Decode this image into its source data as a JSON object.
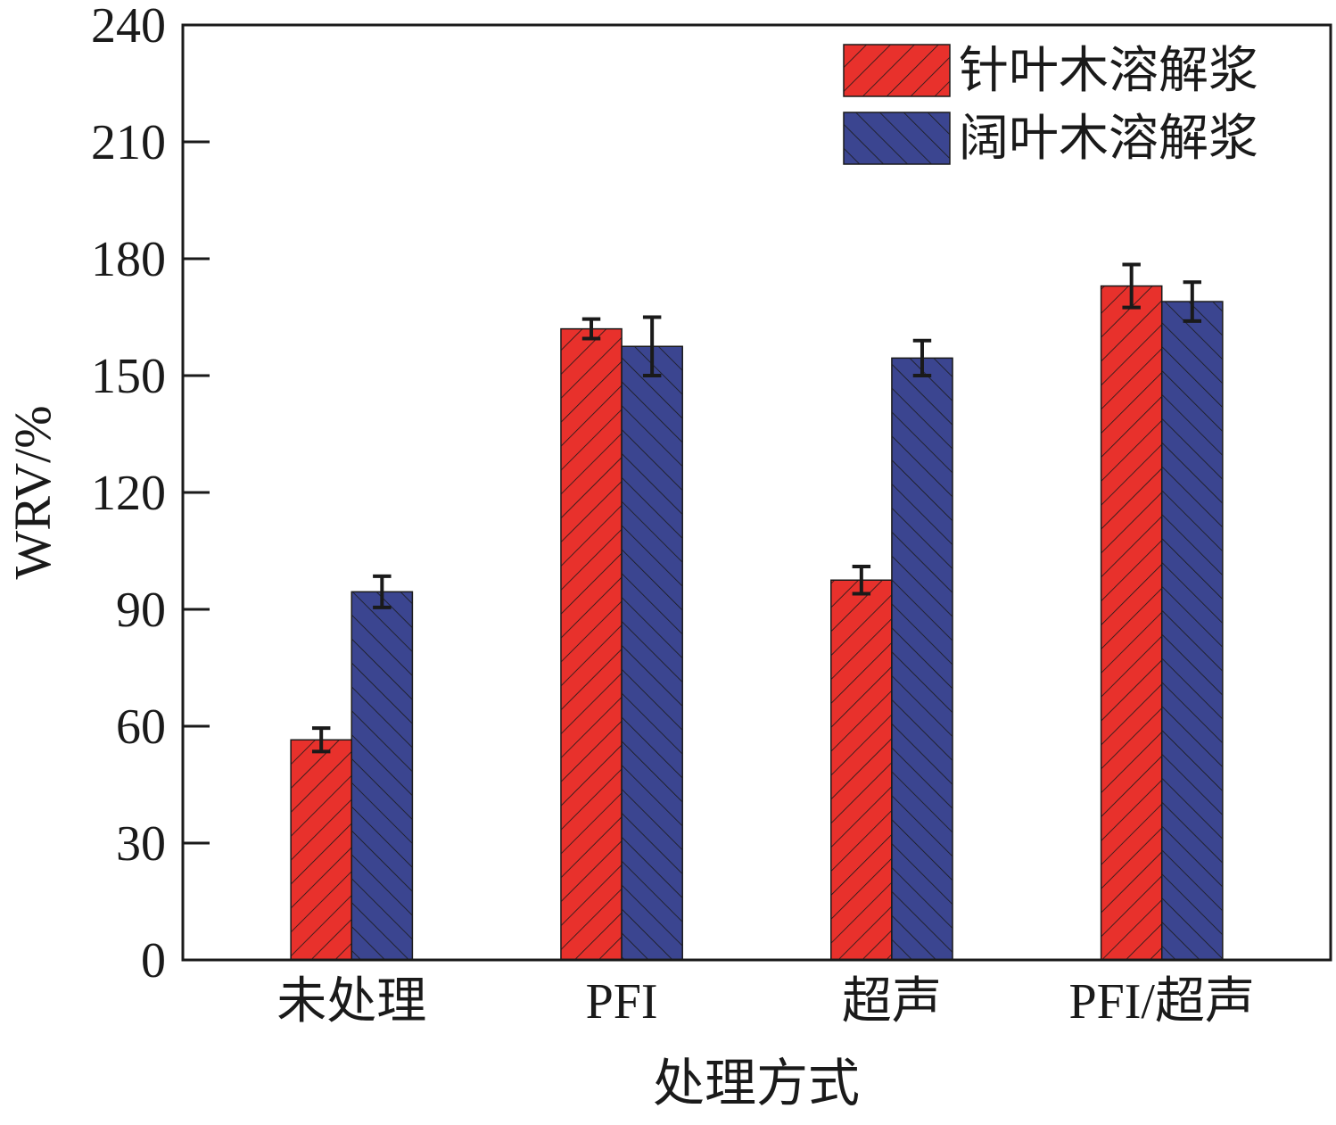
{
  "chart_data": {
    "type": "bar",
    "title": "",
    "xlabel": "处理方式",
    "ylabel": "WRV/%",
    "ylim": [
      0,
      240
    ],
    "yticks": [
      0,
      30,
      60,
      90,
      120,
      150,
      180,
      210,
      240
    ],
    "categories": [
      "未处理",
      "PFI",
      "超声",
      "PFI/超声"
    ],
    "series": [
      {
        "name": "针叶木溶解浆",
        "color": "#e8312c",
        "hatch": "forward-diagonal",
        "values": [
          56.5,
          162,
          97.5,
          173
        ],
        "errors": [
          3,
          2.5,
          3.5,
          5.5
        ]
      },
      {
        "name": "阔叶木溶解浆",
        "color": "#3b4590",
        "hatch": "backward-diagonal",
        "values": [
          94.5,
          157.5,
          154.5,
          169
        ],
        "errors": [
          4,
          7.5,
          4.5,
          5
        ]
      }
    ],
    "legend_position": "top-right",
    "grid": false
  }
}
